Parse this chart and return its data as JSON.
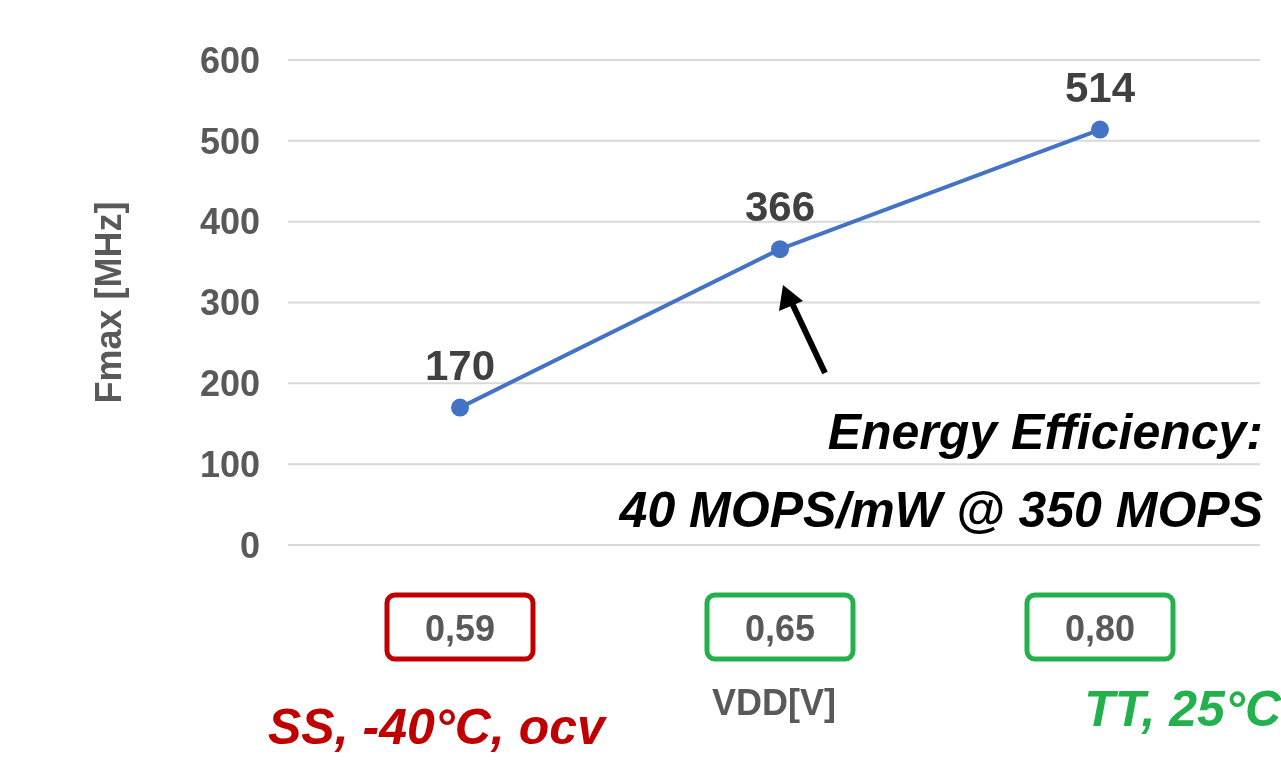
{
  "chart_data": {
    "type": "line",
    "xlabel": "VDD[V]",
    "ylabel": "Fmax [MHz]",
    "categories": [
      "0,59",
      "0,65",
      "0,80"
    ],
    "series": [
      {
        "color": "#4472c4",
        "values": [
          170,
          366,
          514
        ]
      }
    ],
    "ylim": [
      0,
      600
    ],
    "yticks": [
      0,
      100,
      200,
      300,
      400,
      500,
      600
    ],
    "grid": "y",
    "marker": "circle",
    "data_labels": true,
    "annotations": [
      "Energy Efficiency:\n40 MOPS/mW @ 350 MOPS",
      "SS, -40°C, ocv",
      "TT, 25°C"
    ]
  }
}
